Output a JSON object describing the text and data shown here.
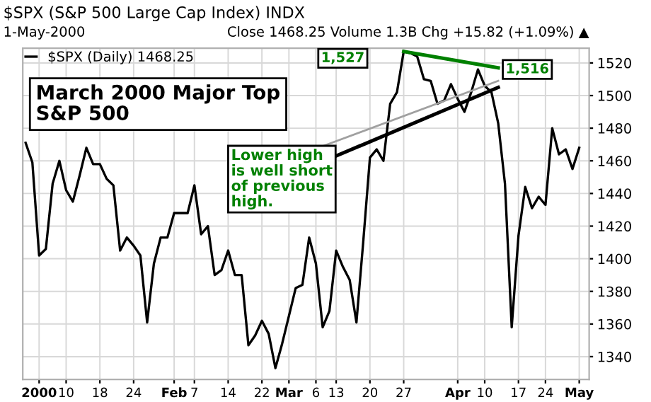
{
  "chart_data": {
    "type": "line",
    "title": "$SPX (S&P 500 Large Cap Index) INDX",
    "subtitle": "1-May-2000",
    "annotations": [
      "Close 1468.25 Volume 1.3B Chg +15.82 (+1.09%) ▲",
      "March 2000 Major Top\nS&P 500",
      "Lower high\nis well short\nof previous\nhigh.",
      "1,527",
      {
        "text": "1,516",
        "y": 1516
      }
    ],
    "categories": [
      null,
      null,
      "2000",
      null,
      null,
      null,
      "10",
      null,
      null,
      null,
      null,
      "18",
      null,
      null,
      null,
      null,
      "24",
      null,
      null,
      null,
      null,
      null,
      "Feb",
      null,
      null,
      "7",
      null,
      null,
      null,
      null,
      "14",
      null,
      null,
      null,
      null,
      "22",
      null,
      null,
      null,
      "Mar",
      null,
      null,
      null,
      "6",
      null,
      null,
      "13",
      null,
      null,
      null,
      null,
      "20",
      null,
      null,
      null,
      null,
      "27",
      null,
      null,
      null,
      null,
      null,
      null,
      null,
      "Apr",
      null,
      null,
      null,
      "10",
      null,
      null,
      null,
      null,
      "17",
      null,
      null,
      null,
      "24",
      null,
      null,
      null,
      null,
      "May"
    ],
    "series": [
      {
        "name": "$SPX (Daily) 1468.25",
        "color": "#000000",
        "values": [
          1471,
          1459,
          1402,
          1406,
          1446,
          1460,
          1442,
          1435,
          1451,
          1468,
          1458,
          1458,
          1449,
          1445,
          1405,
          1413,
          1408,
          1402,
          1361,
          1397,
          1413,
          1413,
          1428,
          1428,
          1428,
          1445,
          1415,
          1420,
          1390,
          1393,
          1405,
          1390,
          1390,
          1347,
          1353,
          1362,
          1354,
          1333,
          1348,
          1365,
          1382,
          1384,
          1413,
          1397,
          1358,
          1368,
          1405,
          1395,
          1387,
          1361,
          1410,
          1462,
          1467,
          1460,
          1495,
          1502,
          1527,
          1526,
          1524,
          1510,
          1509,
          1495,
          1497,
          1507,
          1498,
          1490,
          1502,
          1516,
          1506,
          1502,
          1483,
          1446,
          1358,
          1414,
          1444,
          1431,
          1438,
          1433,
          1480,
          1464,
          1467,
          1455,
          1468
        ]
      },
      {
        "color": "#a0a0a0",
        "values": [
          null,
          null,
          null,
          null,
          null,
          null,
          null,
          null,
          null,
          null,
          null,
          null,
          null,
          null,
          null,
          null,
          null,
          null,
          null,
          null,
          null,
          null,
          null,
          null,
          null,
          null,
          null,
          null,
          null,
          null,
          null,
          null,
          null,
          null,
          null,
          null,
          null,
          null,
          null,
          null,
          null,
          null,
          null,
          null,
          1469,
          null,
          null,
          null,
          null,
          null,
          null,
          null,
          null,
          null,
          null,
          null,
          null,
          null,
          null,
          null,
          null,
          null,
          null,
          null,
          null,
          null,
          null,
          null,
          null,
          null,
          1509,
          null,
          null,
          null,
          null,
          null,
          null,
          null,
          null,
          null,
          null,
          null,
          null
        ]
      },
      {
        "color": "#000000",
        "values": [
          null,
          null,
          null,
          null,
          null,
          null,
          null,
          null,
          null,
          null,
          null,
          null,
          null,
          null,
          null,
          null,
          null,
          null,
          null,
          null,
          null,
          null,
          null,
          null,
          null,
          null,
          null,
          null,
          null,
          null,
          null,
          null,
          null,
          null,
          null,
          null,
          null,
          null,
          null,
          null,
          null,
          null,
          null,
          null,
          null,
          null,
          1463,
          null,
          null,
          null,
          null,
          null,
          null,
          null,
          null,
          null,
          null,
          null,
          null,
          null,
          null,
          null,
          null,
          null,
          null,
          null,
          null,
          null,
          null,
          null,
          1505,
          null,
          null,
          null,
          null,
          null,
          null,
          null,
          null,
          null,
          null,
          null,
          null
        ]
      },
      {
        "color": "#008000",
        "values": [
          null,
          null,
          null,
          null,
          null,
          null,
          null,
          null,
          null,
          null,
          null,
          null,
          null,
          null,
          null,
          null,
          null,
          null,
          null,
          null,
          null,
          null,
          null,
          null,
          null,
          null,
          null,
          null,
          null,
          null,
          null,
          null,
          null,
          null,
          null,
          null,
          null,
          null,
          null,
          null,
          null,
          null,
          null,
          null,
          null,
          null,
          null,
          null,
          null,
          null,
          null,
          null,
          null,
          null,
          null,
          null,
          1527,
          null,
          null,
          null,
          null,
          null,
          null,
          null,
          null,
          null,
          null,
          null,
          null,
          null,
          1517,
          null,
          null,
          null,
          null,
          null,
          null,
          null,
          null,
          null,
          null,
          null,
          null
        ]
      }
    ],
    "ylim": [
      1326,
      1529
    ],
    "yticks": [
      1340,
      1360,
      1380,
      1400,
      1420,
      1440,
      1460,
      1480,
      1500,
      1520
    ],
    "grid": true,
    "legend": "top left"
  }
}
